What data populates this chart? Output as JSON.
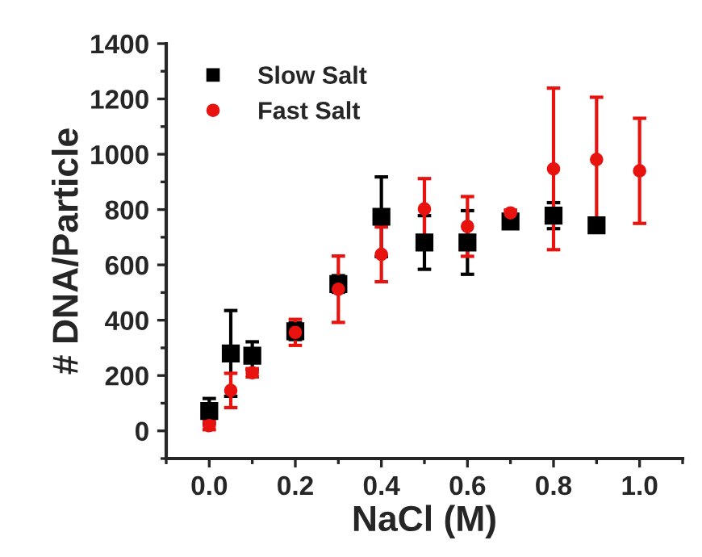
{
  "chart_data": {
    "type": "scatter",
    "xlabel": "NaCl (M)",
    "ylabel": "# DNA/Particle",
    "x": [
      0.0,
      0.05,
      0.1,
      0.2,
      0.3,
      0.4,
      0.5,
      0.6,
      0.7,
      0.8,
      0.9
    ],
    "series": [
      {
        "name": "Slow Salt",
        "color": "#000000",
        "marker": "square",
        "values": [
          72,
          280,
          272,
          360,
          531,
          774,
          681,
          681,
          757,
          778,
          743
        ],
        "errors": [
          45,
          155,
          50,
          30,
          30,
          144,
          97,
          115,
          10,
          47,
          10
        ]
      },
      {
        "name": "Fast Salt",
        "color": "#e8130f",
        "marker": "circle",
        "x": [
          0.0,
          0.05,
          0.1,
          0.2,
          0.3,
          0.4,
          0.5,
          0.6,
          0.7,
          0.8,
          0.9,
          1.0
        ],
        "values": [
          19,
          146,
          210,
          356,
          512,
          638,
          802,
          739,
          788,
          947,
          981,
          940
        ],
        "errors": [
          15,
          62,
          15,
          47,
          120,
          99,
          110,
          108,
          10,
          292,
          225,
          190
        ]
      }
    ],
    "xlim": [
      -0.1,
      1.1
    ],
    "xticks": [
      {
        "value": 0.0,
        "label": "0.0"
      },
      {
        "value": 0.2,
        "label": "0.2"
      },
      {
        "value": 0.4,
        "label": "0.4"
      },
      {
        "value": 0.6,
        "label": "0.6"
      },
      {
        "value": 0.8,
        "label": "0.8"
      },
      {
        "value": 1.0,
        "label": "1.0"
      }
    ],
    "ylim": [
      -100,
      1400
    ],
    "yticks": [
      0,
      200,
      400,
      600,
      800,
      1000,
      1200,
      1400
    ],
    "legend": "top left",
    "grid": false
  }
}
